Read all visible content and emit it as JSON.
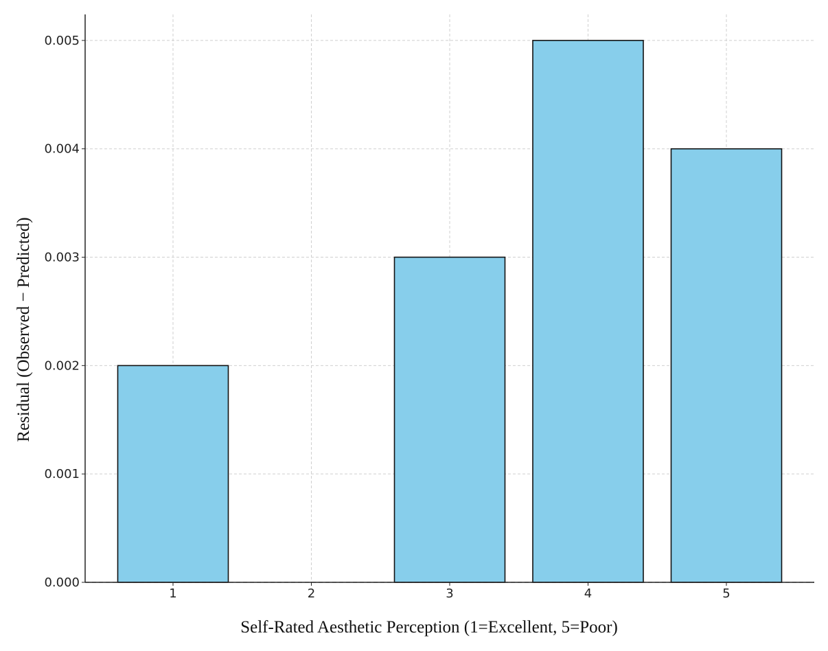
{
  "chart_data": {
    "type": "bar",
    "title": "",
    "xlabel": "Self-Rated Aesthetic Perception (1=Excellent, 5=Poor)",
    "ylabel": "Residual (Observed − Predicted)",
    "categories": [
      "1",
      "2",
      "3",
      "4",
      "5"
    ],
    "values": [
      0.002,
      0.0,
      0.003,
      0.005,
      0.004
    ],
    "ylim": [
      0,
      0.00524
    ],
    "yticks": [
      0.0,
      0.001,
      0.002,
      0.003,
      0.004,
      0.005
    ],
    "ytick_labels": [
      "0.000",
      "0.001",
      "0.002",
      "0.003",
      "0.004",
      "0.005"
    ],
    "grid": true,
    "legend": "none",
    "bar_color": "#87ceeb",
    "edge_color": "#111111",
    "zero_line": "dashed"
  }
}
